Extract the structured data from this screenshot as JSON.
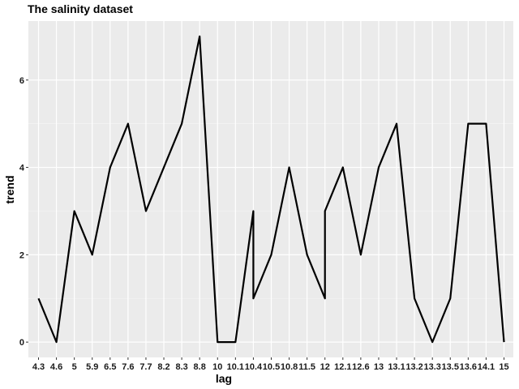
{
  "chart_data": {
    "type": "line",
    "title": "The salinity dataset",
    "xlabel": "lag",
    "ylabel": "trend",
    "categories": [
      "4.3",
      "4.6",
      "5",
      "5.9",
      "6.5",
      "7.6",
      "7.7",
      "8.2",
      "8.3",
      "8.8",
      "10",
      "10.1",
      "10.4",
      "10.5",
      "10.8",
      "11.5",
      "12",
      "12.1",
      "12.6",
      "13",
      "13.1",
      "13.2",
      "13.3",
      "13.5",
      "13.6",
      "14.1",
      "15"
    ],
    "points": [
      {
        "x": "4.3",
        "y": 1
      },
      {
        "x": "4.6",
        "y": 0
      },
      {
        "x": "5",
        "y": 3
      },
      {
        "x": "5.9",
        "y": 2
      },
      {
        "x": "6.5",
        "y": 4
      },
      {
        "x": "7.6",
        "y": 5
      },
      {
        "x": "7.7",
        "y": 3
      },
      {
        "x": "8.2",
        "y": 4
      },
      {
        "x": "8.3",
        "y": 5
      },
      {
        "x": "8.8",
        "y": 7
      },
      {
        "x": "10",
        "y": 0
      },
      {
        "x": "10.1",
        "y": 0
      },
      {
        "x": "10.4",
        "y": 3
      },
      {
        "x": "10.4",
        "y": 1
      },
      {
        "x": "10.5",
        "y": 2
      },
      {
        "x": "10.8",
        "y": 4
      },
      {
        "x": "11.5",
        "y": 2
      },
      {
        "x": "12",
        "y": 1
      },
      {
        "x": "12",
        "y": 3
      },
      {
        "x": "12.1",
        "y": 4
      },
      {
        "x": "12.6",
        "y": 2
      },
      {
        "x": "13",
        "y": 4
      },
      {
        "x": "13.1",
        "y": 5
      },
      {
        "x": "13.2",
        "y": 1
      },
      {
        "x": "13.3",
        "y": 0
      },
      {
        "x": "13.5",
        "y": 1
      },
      {
        "x": "13.6",
        "y": 5
      },
      {
        "x": "14.1",
        "y": 5
      },
      {
        "x": "15",
        "y": 0
      }
    ],
    "yticks": [
      0,
      2,
      4,
      6
    ],
    "ylim": [
      -0.35,
      7.35
    ],
    "grid": true,
    "legend": "none",
    "colors": {
      "panel": "#ebebeb",
      "grid_major": "#ffffff",
      "grid_minor": "#f5f5f5",
      "line": "#000000",
      "tick": "#333333"
    }
  }
}
